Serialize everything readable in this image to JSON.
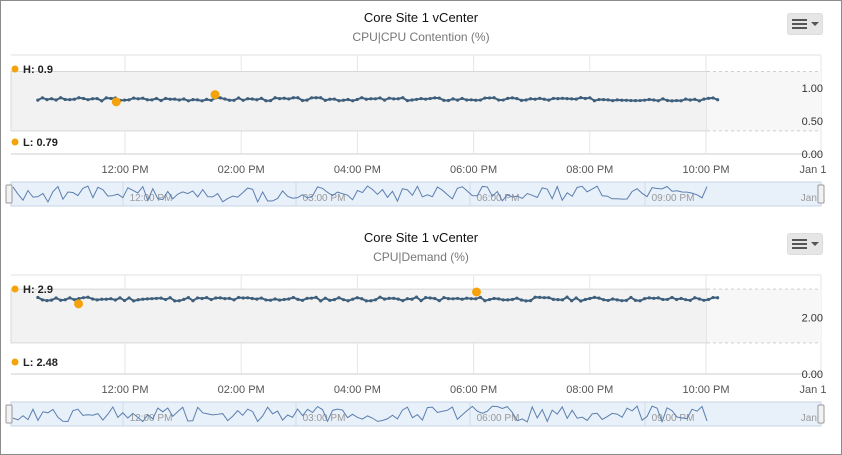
{
  "colors": {
    "line": "#3d5f7c",
    "marker": "#f5a30c",
    "band": "#f2f2f2",
    "navigator_bg": "#e8f0fa",
    "navigator_line": "#5b7fae"
  },
  "x_ticks": [
    "12:00 PM",
    "02:00 PM",
    "04:00 PM",
    "06:00 PM",
    "08:00 PM",
    "10:00 PM",
    "Jan 1"
  ],
  "nav_ticks": [
    "12:00 PM",
    "03:00 PM",
    "06:00 PM",
    "09:00 PM",
    "Jan 1"
  ],
  "chart_data": [
    {
      "type": "line",
      "title": "Core Site 1 vCenter",
      "subtitle": "CPU|CPU Contention (%)",
      "high_label": "H: 0.9",
      "low_label": "L: 0.79",
      "y_tick_labels": [
        "1.00",
        "0.50",
        "0.00"
      ],
      "y_ticks": [
        1.0,
        0.5,
        0.0
      ],
      "ylim": [
        0,
        1.5
      ],
      "band": [
        0.35,
        1.25
      ],
      "x_range_hours": [
        10.5,
        22.2
      ],
      "series": [
        {
          "base": 0.83,
          "amp": 0.025,
          "seed": 3
        }
      ],
      "high_point": {
        "x_hours": 13.55,
        "y": 0.9
      },
      "low_point": {
        "x_hours": 11.85,
        "y": 0.79
      }
    },
    {
      "type": "line",
      "title": "Core Site 1 vCenter",
      "subtitle": "CPU|Demand (%)",
      "high_label": "H: 2.9",
      "low_label": "L: 2.48",
      "y_tick_labels": [
        "2.00",
        "0.00"
      ],
      "y_ticks": [
        2.0,
        0.0
      ],
      "ylim": [
        0,
        3.5
      ],
      "band": [
        1.1,
        3.0
      ],
      "x_range_hours": [
        10.5,
        22.2
      ],
      "series": [
        {
          "base": 2.65,
          "amp": 0.07,
          "seed": 11
        }
      ],
      "high_point": {
        "x_hours": 18.05,
        "y": 2.9
      },
      "low_point": {
        "x_hours": 11.2,
        "y": 2.48
      }
    }
  ]
}
